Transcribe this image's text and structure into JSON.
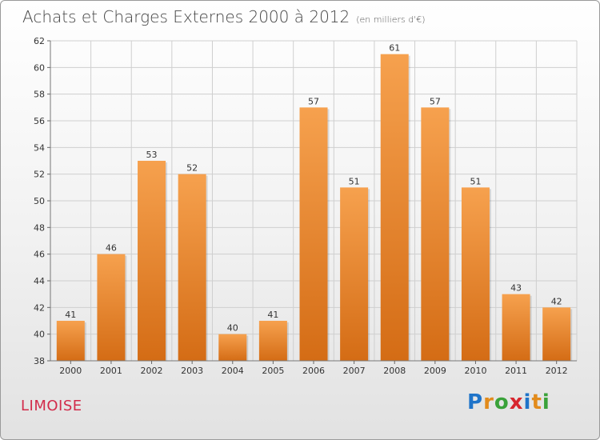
{
  "header": {
    "title": "Achats et Charges Externes 2000 à 2012",
    "subtitle": "(en milliers d'€)"
  },
  "footer": {
    "town": "LIMOISE",
    "logo_text": "Proxiti",
    "logo_letters": [
      {
        "ch": "P",
        "color": "#1f74c9"
      },
      {
        "ch": "r",
        "color": "#e28b1c"
      },
      {
        "ch": "o",
        "color": "#3aa23a"
      },
      {
        "ch": "x",
        "color": "#d7262e"
      },
      {
        "ch": "i",
        "color": "#1f74c9"
      },
      {
        "ch": "t",
        "color": "#e28b1c"
      },
      {
        "ch": "i",
        "color": "#3aa23a"
      }
    ]
  },
  "colors": {
    "bar_top": "#f6a14e",
    "bar_bottom": "#d46c15",
    "grid": "#cfcfcf",
    "town": "#d22b4a"
  },
  "chart_data": {
    "type": "bar",
    "title": "Achats et Charges Externes 2000 à 2012",
    "subtitle": "(en milliers d'€)",
    "categories": [
      "2000",
      "2001",
      "2002",
      "2003",
      "2004",
      "2005",
      "2006",
      "2007",
      "2008",
      "2009",
      "2010",
      "2011",
      "2012"
    ],
    "values": [
      41,
      46,
      53,
      52,
      40,
      41,
      57,
      51,
      61,
      57,
      51,
      43,
      42
    ],
    "ylim": [
      38,
      62
    ],
    "yticks": [
      38,
      40,
      42,
      44,
      46,
      48,
      50,
      52,
      54,
      56,
      58,
      60,
      62
    ],
    "grid": true,
    "legend": "none"
  }
}
